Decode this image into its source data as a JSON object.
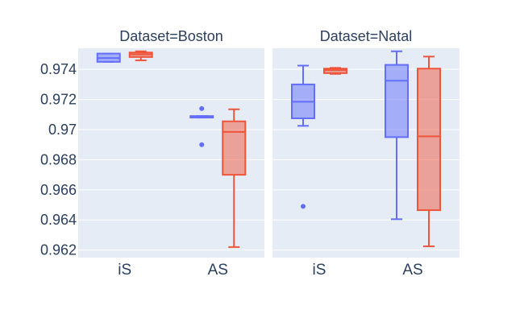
{
  "chart_data": {
    "type": "box",
    "categories": [
      "iS",
      "AS"
    ],
    "yticks": [
      "0.974",
      "0.972",
      "0.97",
      "0.968",
      "0.966",
      "0.964",
      "0.962"
    ],
    "ytick_values": [
      0.974,
      0.972,
      0.97,
      0.968,
      0.966,
      0.964,
      0.962
    ],
    "ylim": [
      0.9615,
      0.9754
    ],
    "series_colors": [
      "#636efa",
      "#ef553b"
    ],
    "facets": [
      {
        "title": "Dataset=Boston",
        "boxes": [
          {
            "category": "iS",
            "series": 0,
            "min": 0.9745,
            "q1": 0.9745,
            "median": 0.97475,
            "q3": 0.97505,
            "max": 0.97505,
            "outliers": []
          },
          {
            "category": "iS",
            "series": 1,
            "min": 0.9746,
            "q1": 0.97482,
            "median": 0.975,
            "q3": 0.97512,
            "max": 0.9752,
            "outliers": []
          },
          {
            "category": "AS",
            "series": 0,
            "min": 0.9708,
            "q1": 0.9708,
            "median": 0.97085,
            "q3": 0.9709,
            "max": 0.9709,
            "outliers": [
              0.9714,
              0.969
            ]
          },
          {
            "category": "AS",
            "series": 1,
            "min": 0.9622,
            "q1": 0.967,
            "median": 0.96985,
            "q3": 0.97055,
            "max": 0.97135,
            "outliers": []
          }
        ]
      },
      {
        "title": "Dataset=Natal",
        "boxes": [
          {
            "category": "iS",
            "series": 0,
            "min": 0.97025,
            "q1": 0.97075,
            "median": 0.97185,
            "q3": 0.973,
            "max": 0.97425,
            "outliers": [
              0.9649
            ]
          },
          {
            "category": "iS",
            "series": 1,
            "min": 0.9737,
            "q1": 0.97375,
            "median": 0.97395,
            "q3": 0.97405,
            "max": 0.9741,
            "outliers": []
          },
          {
            "category": "AS",
            "series": 0,
            "min": 0.96405,
            "q1": 0.9695,
            "median": 0.97325,
            "q3": 0.9743,
            "max": 0.9752,
            "outliers": []
          },
          {
            "category": "AS",
            "series": 1,
            "min": 0.96225,
            "q1": 0.96465,
            "median": 0.96955,
            "q3": 0.97405,
            "max": 0.97485,
            "outliers": []
          }
        ]
      }
    ]
  }
}
